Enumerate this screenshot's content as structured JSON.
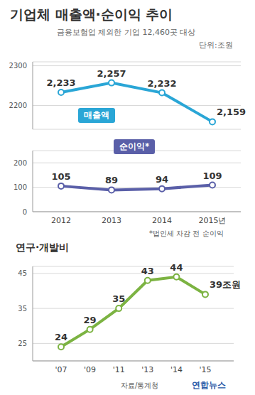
{
  "title": "기업체 매출액·순이익 추이",
  "subtitle": "금융보험업 제외한 기업 12,460곳 대상",
  "unit": "단위:조원",
  "footnote": "*법인세 차감 전 순이익",
  "source": "자료/통계청",
  "credit": "연합뉴스",
  "chart_data": [
    {
      "type": "line",
      "categories": [
        "2012",
        "2013",
        "2014",
        "2015년"
      ],
      "series": [
        {
          "name": "매출액",
          "color": "#2aa6d6",
          "values": [
            2233,
            2257,
            2232,
            2159
          ],
          "value_labels": [
            "2,233",
            "2,257",
            "2,232",
            "2,159"
          ],
          "marker": "circle",
          "line_style": "solid"
        }
      ],
      "ylim": [
        2140,
        2310
      ],
      "yticks": [
        2200,
        2300
      ],
      "grid": true,
      "data_labels": true,
      "tick_labels": "y"
    },
    {
      "type": "line",
      "categories": [
        "2012",
        "2013",
        "2014",
        "2015년"
      ],
      "series": [
        {
          "name": "순이익*",
          "color": "#5a5fa8",
          "values": [
            105,
            89,
            94,
            109
          ],
          "marker": "circle",
          "line_style": "solid"
        }
      ],
      "ylim": [
        0,
        250
      ],
      "yticks": [
        0,
        100,
        200
      ],
      "grid": true,
      "data_labels": true
    },
    {
      "type": "line",
      "title": "연구·개발비",
      "categories": [
        "'07",
        "'09",
        "'11",
        "'13",
        "'14",
        "'15"
      ],
      "series": [
        {
          "color": "#7cb342",
          "values": [
            24,
            29,
            35,
            43,
            44,
            39
          ],
          "value_labels": [
            "24",
            "29",
            "35",
            "43",
            "44",
            "39조원"
          ],
          "marker": "circle",
          "line_style": "solid"
        }
      ],
      "ylim": [
        20,
        47
      ],
      "yticks": [
        25,
        35,
        45
      ],
      "grid": true,
      "data_labels": true
    }
  ]
}
